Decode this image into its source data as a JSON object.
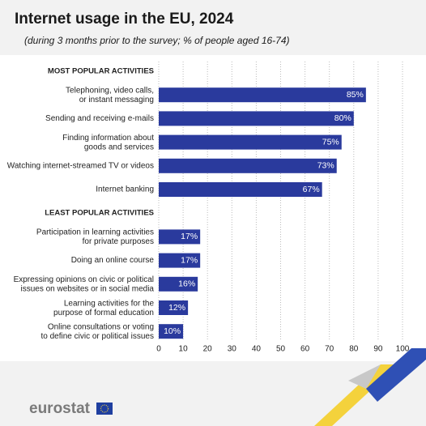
{
  "chart_data": {
    "type": "bar",
    "orientation": "horizontal",
    "title": "Internet usage in the EU, 2024",
    "subtitle": "(during 3 months prior to the survey; % of people aged 16-74)",
    "groups": [
      {
        "name": "MOST POPULAR ACTIVITIES",
        "categories": [
          "Telephoning, video calls,\nor instant messaging",
          "Sending and receiving e-mails",
          "Finding information about\ngoods and services",
          "Watching internet-streamed TV or videos",
          "Internet banking"
        ],
        "values": [
          85,
          80,
          75,
          73,
          67
        ],
        "value_labels": [
          "85%",
          "80%",
          "75%",
          "73%",
          "67%"
        ]
      },
      {
        "name": "LEAST POPULAR ACTIVITIES",
        "categories": [
          "Participation in learning activities\nfor private purposes",
          "Doing an online course",
          "Expressing opinions on civic or political\nissues on websites or in social media",
          "Learning activities for the\npurpose of formal education",
          "Online consultations or voting\nto define civic or political issues"
        ],
        "values": [
          17,
          17,
          16,
          12,
          10
        ],
        "value_labels": [
          "17%",
          "17%",
          "16%",
          "12%",
          "10%"
        ]
      }
    ],
    "color": "#2a3a9d",
    "xlim": [
      0,
      100
    ],
    "xticks": [
      0,
      10,
      20,
      30,
      40,
      50,
      60,
      70,
      80,
      90,
      100
    ],
    "grid": true
  },
  "logo": "eurostat"
}
